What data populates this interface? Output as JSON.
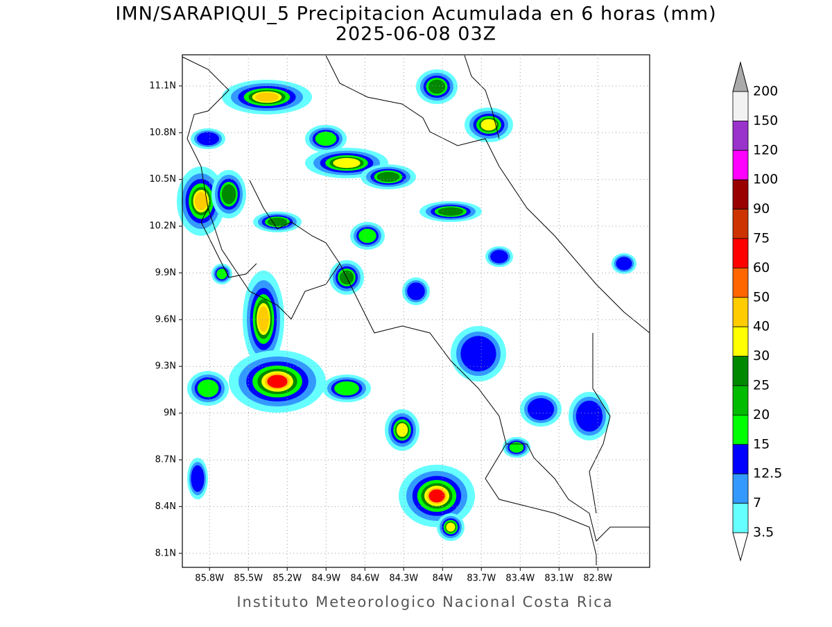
{
  "title": "IMN/SARAPIQUI_5 Precipitacion Acumulada en 6 horas (mm)",
  "subtitle": "2025-06-08 03Z",
  "footer": "Instituto Meteorologico Nacional Costa Rica",
  "map": {
    "lat_range": [
      8.01,
      11.3
    ],
    "lon_range": [
      -86.01,
      -82.4
    ],
    "grid": true,
    "lat_ticks": [
      {
        "value": 11.1,
        "label": "11.1N"
      },
      {
        "value": 10.8,
        "label": "10.8N"
      },
      {
        "value": 10.5,
        "label": "10.5N"
      },
      {
        "value": 10.2,
        "label": "10.2N"
      },
      {
        "value": 9.9,
        "label": "9.9N"
      },
      {
        "value": 9.6,
        "label": "9.6N"
      },
      {
        "value": 9.3,
        "label": "9.3N"
      },
      {
        "value": 9,
        "label": "9N"
      },
      {
        "value": 8.7,
        "label": "8.7N"
      },
      {
        "value": 8.4,
        "label": "8.4N"
      },
      {
        "value": 8.1,
        "label": "8.1N"
      }
    ],
    "lon_ticks": [
      {
        "value": -85.8,
        "label": "85.8W"
      },
      {
        "value": -85.5,
        "label": "85.5W"
      },
      {
        "value": -85.2,
        "label": "85.2W"
      },
      {
        "value": -84.9,
        "label": "84.9W"
      },
      {
        "value": -84.6,
        "label": "84.6W"
      },
      {
        "value": -84.3,
        "label": "84.3W"
      },
      {
        "value": -84,
        "label": "84W"
      },
      {
        "value": -83.7,
        "label": "83.7W"
      },
      {
        "value": -83.4,
        "label": "83.4W"
      },
      {
        "value": -83.1,
        "label": "83.1W"
      },
      {
        "value": -82.8,
        "label": "82.8W"
      }
    ]
  },
  "colorbar": {
    "levels": [
      200,
      150,
      120,
      100,
      90,
      75,
      60,
      50,
      40,
      30,
      25,
      20,
      15,
      12.5,
      7,
      3.5
    ],
    "colors": [
      "#f2f2f2",
      "#9933cc",
      "#ff00ff",
      "#990000",
      "#cc3300",
      "#ff0000",
      "#ff6600",
      "#ffcc00",
      "#ffff00",
      "#008800",
      "#00bb00",
      "#00ff00",
      "#0000ff",
      "#3399ff",
      "#66ffff"
    ],
    "over_color": "#aaaaaa",
    "under_color": "#ffffff"
  }
}
